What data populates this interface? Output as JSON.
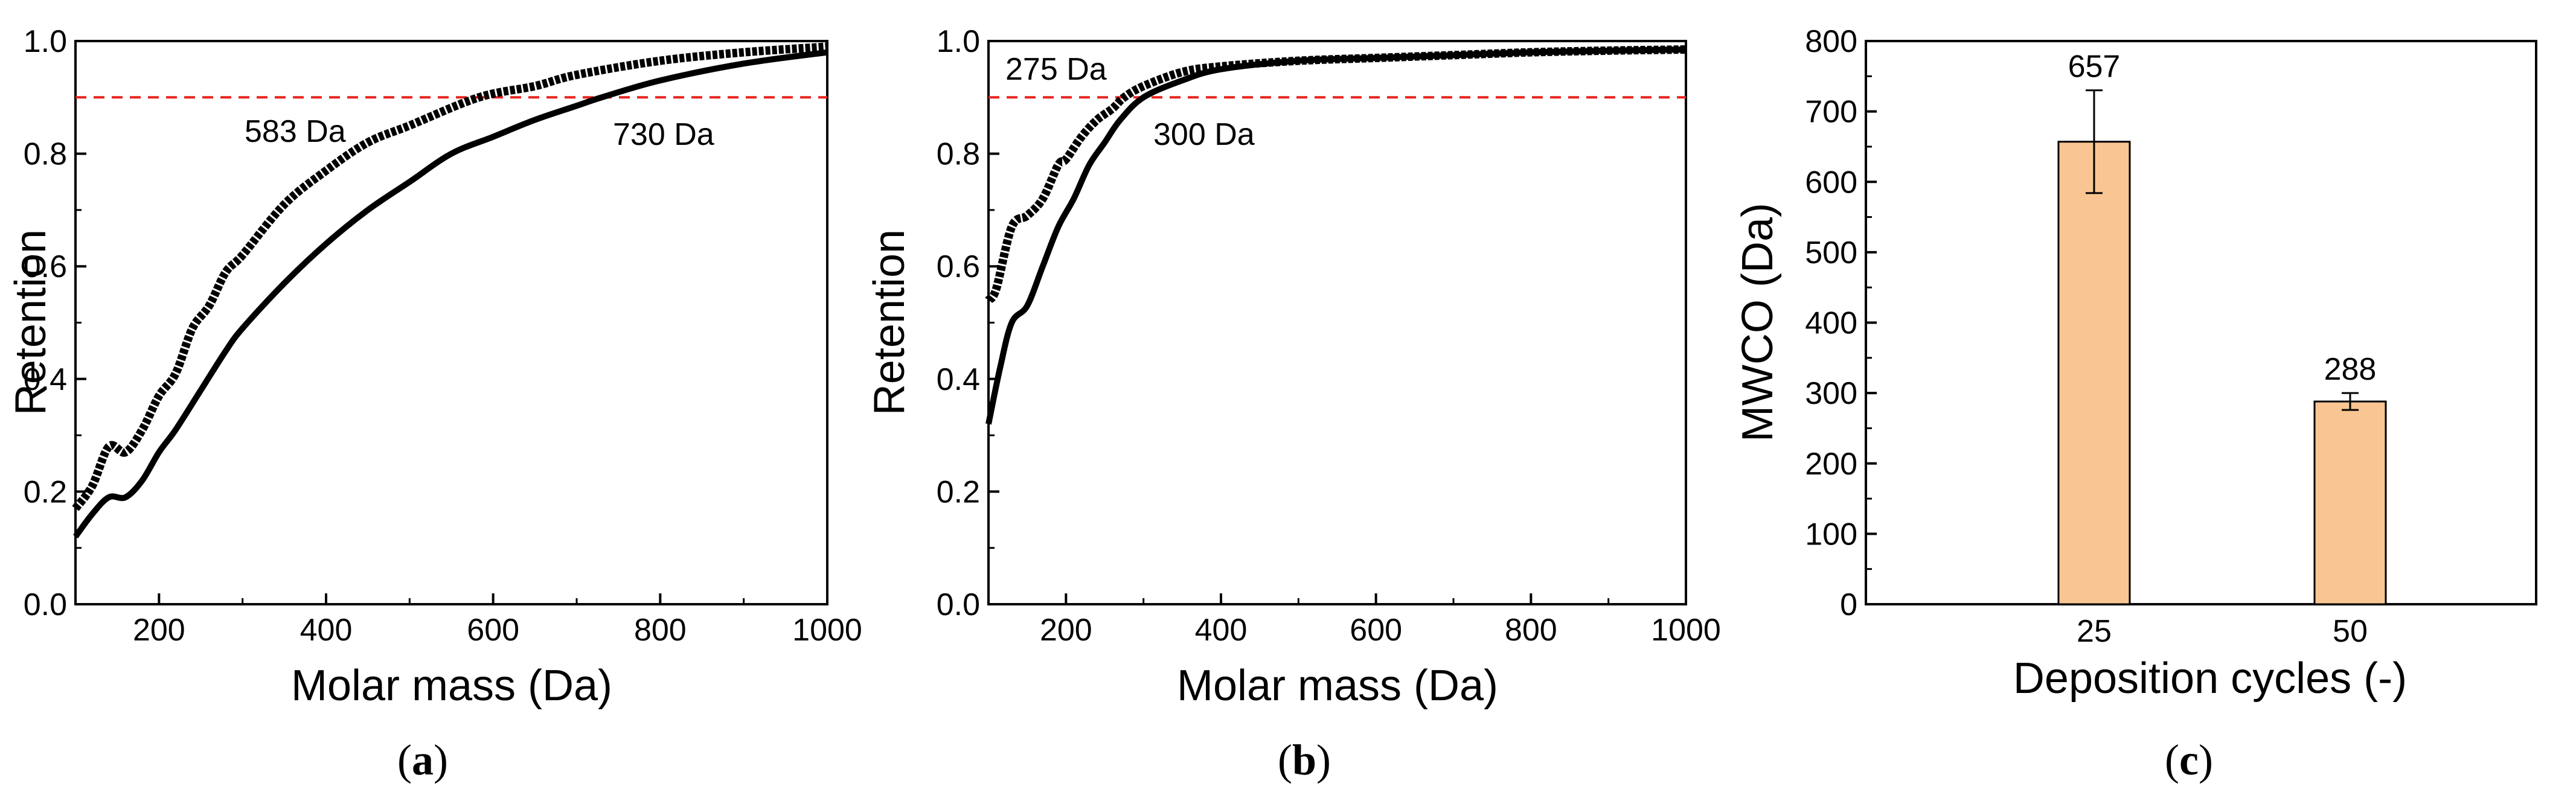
{
  "chart_data": [
    {
      "panel": "a",
      "type": "line",
      "xlabel": "Molar mass (Da)",
      "ylabel": "Retention",
      "xlim": [
        100,
        1000
      ],
      "ylim": [
        0.0,
        1.0
      ],
      "xticks": [
        "200",
        "400",
        "600",
        "800",
        "1000"
      ],
      "yticks": [
        "0.0",
        "0.2",
        "0.4",
        "0.6",
        "0.8",
        "1.0"
      ],
      "reference_line": {
        "y": 0.9,
        "color": "#e8241d",
        "style": "dashed"
      },
      "series": [
        {
          "name": "curve-upper",
          "style": "square-markers",
          "x": [
            100,
            120,
            140,
            160,
            180,
            200,
            220,
            240,
            260,
            280,
            300,
            350,
            400,
            450,
            500,
            583,
            650,
            700,
            800,
            900,
            1000
          ],
          "values": [
            0.17,
            0.21,
            0.28,
            0.27,
            0.31,
            0.37,
            0.41,
            0.49,
            0.53,
            0.59,
            0.62,
            0.71,
            0.77,
            0.82,
            0.85,
            0.9,
            0.92,
            0.94,
            0.965,
            0.98,
            0.99
          ]
        },
        {
          "name": "curve-lower",
          "style": "solid",
          "x": [
            100,
            120,
            140,
            160,
            180,
            200,
            220,
            250,
            280,
            300,
            350,
            400,
            450,
            500,
            550,
            600,
            650,
            700,
            730,
            800,
            900,
            1000
          ],
          "values": [
            0.12,
            0.16,
            0.19,
            0.19,
            0.22,
            0.27,
            0.31,
            0.38,
            0.45,
            0.49,
            0.57,
            0.64,
            0.7,
            0.75,
            0.8,
            0.83,
            0.86,
            0.885,
            0.9,
            0.93,
            0.96,
            0.98
          ]
        }
      ],
      "annotations": [
        "583 Da",
        "730 Da"
      ],
      "label": {
        "open": "(",
        "letter": "a",
        "close": ")"
      }
    },
    {
      "panel": "b",
      "type": "line",
      "xlabel": "Molar mass (Da)",
      "ylabel": "Retention",
      "xlim": [
        100,
        1000
      ],
      "ylim": [
        0.0,
        1.0
      ],
      "xticks": [
        "200",
        "400",
        "600",
        "800",
        "1000"
      ],
      "yticks": [
        "0.0",
        "0.2",
        "0.4",
        "0.6",
        "0.8",
        "1.0"
      ],
      "reference_line": {
        "y": 0.9,
        "color": "#e8241d",
        "style": "dashed"
      },
      "series": [
        {
          "name": "curve-upper",
          "style": "square-markers",
          "x": [
            100,
            110,
            130,
            150,
            170,
            190,
            200,
            220,
            240,
            260,
            275,
            300,
            350,
            400,
            500,
            600,
            700,
            800,
            900,
            1000
          ],
          "values": [
            0.54,
            0.56,
            0.67,
            0.69,
            0.72,
            0.78,
            0.79,
            0.83,
            0.86,
            0.88,
            0.9,
            0.92,
            0.945,
            0.955,
            0.965,
            0.97,
            0.975,
            0.98,
            0.983,
            0.985
          ]
        },
        {
          "name": "curve-lower",
          "style": "solid",
          "x": [
            100,
            115,
            130,
            150,
            170,
            190,
            210,
            230,
            250,
            270,
            300,
            350,
            400,
            500,
            600,
            700,
            800,
            900,
            1000
          ],
          "values": [
            0.32,
            0.42,
            0.5,
            0.53,
            0.6,
            0.67,
            0.72,
            0.78,
            0.82,
            0.86,
            0.9,
            0.93,
            0.95,
            0.965,
            0.97,
            0.975,
            0.98,
            0.983,
            0.985
          ]
        }
      ],
      "annotations": [
        "275 Da",
        "300 Da"
      ],
      "label": {
        "open": "(",
        "letter": "b",
        "close": ")"
      }
    },
    {
      "panel": "c",
      "type": "bar",
      "xlabel": "Deposition cycles (-)",
      "ylabel": "MWCO (Da)",
      "ylim": [
        0,
        800
      ],
      "yticks": [
        "0",
        "100",
        "200",
        "300",
        "400",
        "500",
        "600",
        "700",
        "800"
      ],
      "categories": [
        "25",
        "50"
      ],
      "values": [
        657,
        288
      ],
      "errors": [
        73,
        12
      ],
      "data_labels": [
        "657",
        "288"
      ],
      "bar_color": "#f9c592",
      "label": {
        "open": "(",
        "letter": "c",
        "close": ")"
      }
    }
  ]
}
